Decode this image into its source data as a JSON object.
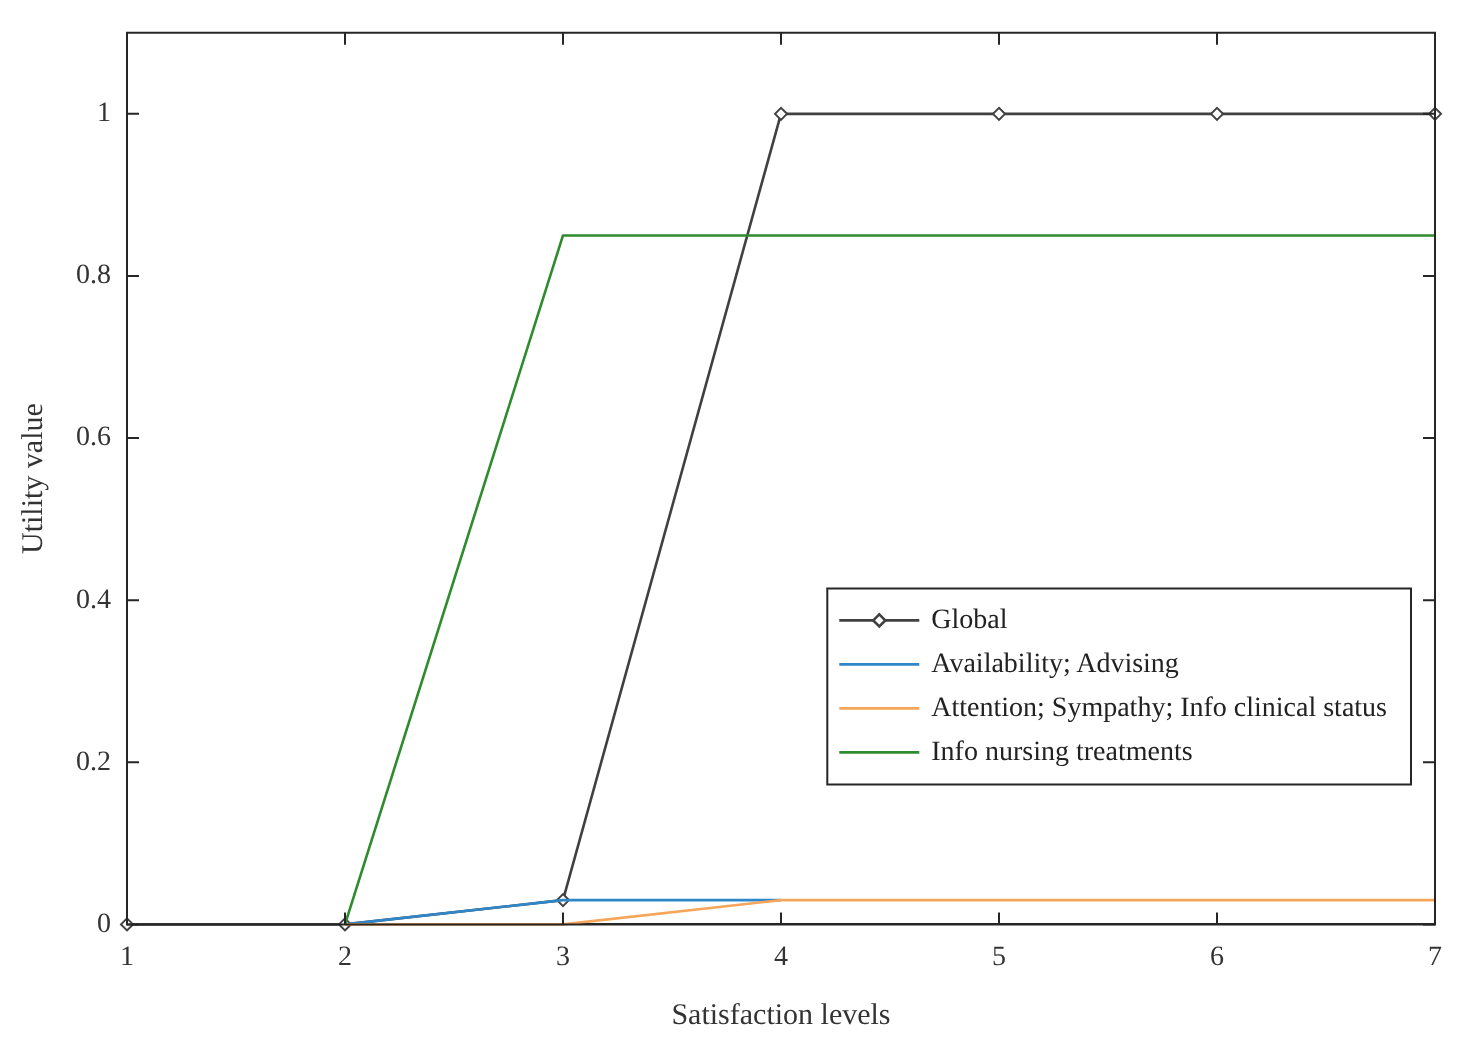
{
  "chart_data": {
    "type": "line",
    "xlabel": "Satisfaction levels",
    "ylabel": "Utility value",
    "x": [
      1,
      2,
      3,
      4,
      5,
      6,
      7
    ],
    "xlim": [
      1,
      7
    ],
    "xticks": [
      1,
      2,
      3,
      4,
      5,
      6,
      7
    ],
    "ylim": [
      0,
      1.1
    ],
    "yticks": [
      0,
      0.2,
      0.4,
      0.6,
      0.8,
      1
    ],
    "grid": false,
    "legend": "bottom right",
    "series": [
      {
        "name": "Global",
        "color": "#404040",
        "marker": "diamond",
        "values": [
          0,
          0,
          0.03,
          1,
          1,
          1,
          1
        ]
      },
      {
        "name": "Availability; Advising",
        "color": "#2f86c8",
        "marker": "none",
        "values": [
          null,
          0,
          0.03,
          0.03,
          null,
          null,
          null
        ]
      },
      {
        "name": "Attention; Sympathy; Info clinical status",
        "color": "#f5a65b",
        "marker": "none",
        "values": [
          null,
          0,
          0,
          0.03,
          0.03,
          0.03,
          0.03
        ]
      },
      {
        "name": "Info nursing treatments",
        "color": "#2e8b2e",
        "marker": "none",
        "values": [
          null,
          0,
          0.85,
          0.85,
          0.85,
          0.85,
          0.85
        ]
      }
    ]
  }
}
